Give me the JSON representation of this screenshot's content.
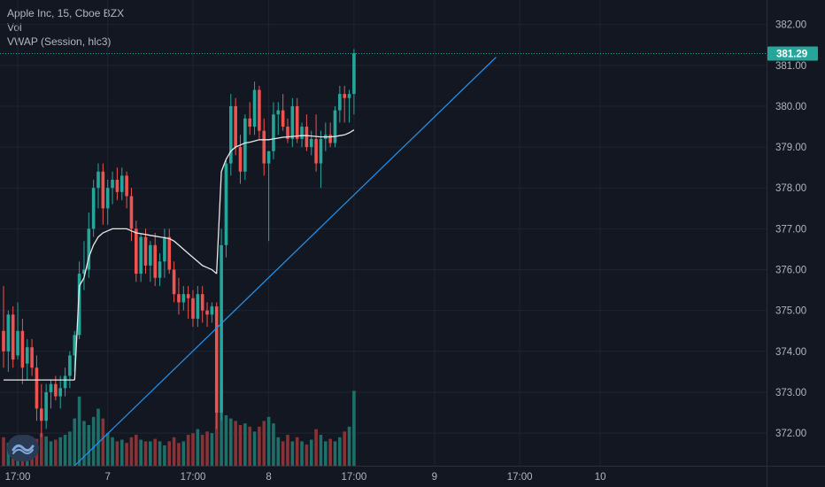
{
  "legend": {
    "symbol_line": "Apple Inc, 15, Cboe BZX",
    "vol_label": "Vol",
    "vwap_label": "VWAP (Session, hlc3)"
  },
  "colors": {
    "background": "#131722",
    "grid": "#1f2433",
    "up": "#26a69a",
    "down": "#ef5350",
    "up_volume": "#1f6f69",
    "down_volume": "#8a3235",
    "vwap": "#e8e8e8",
    "trendline": "#2196f3",
    "last_price": "#26a69a"
  },
  "chart_data": {
    "type": "candlestick",
    "y_axis_ticks": [
      382.0,
      381.0,
      380.0,
      379.0,
      378.0,
      377.0,
      376.0,
      375.0,
      374.0,
      373.0,
      372.0
    ],
    "y_axis_tick_labels": [
      "382.00",
      "381.00",
      "380.00",
      "379.00",
      "378.00",
      "377.00",
      "376.00",
      "375.00",
      "374.00",
      "373.00",
      "372.00"
    ],
    "ylim": [
      371.2,
      382.6
    ],
    "last_price": 381.29,
    "last_price_label": "381.29",
    "x_axis_labels": [
      "17:00",
      "7",
      "17:00",
      "8",
      "17:00",
      "9",
      "17:00",
      "10"
    ],
    "x_axis_label_bar_index": [
      3,
      22,
      40,
      56,
      74,
      91,
      109,
      126
    ],
    "candles": [
      [
        374.5,
        375.6,
        373.6,
        374.0
      ],
      [
        374.0,
        375.0,
        373.5,
        374.9
      ],
      [
        374.9,
        375.1,
        373.6,
        373.8
      ],
      [
        373.9,
        375.2,
        373.8,
        374.5
      ],
      [
        374.5,
        374.8,
        373.2,
        373.6
      ],
      [
        373.7,
        374.3,
        373.3,
        374.1
      ],
      [
        374.1,
        374.3,
        373.4,
        373.6
      ],
      [
        373.6,
        373.9,
        372.3,
        372.6
      ],
      [
        372.6,
        373.2,
        371.9,
        372.3
      ],
      [
        372.3,
        373.2,
        372.1,
        373.0
      ],
      [
        373.0,
        373.3,
        372.6,
        373.2
      ],
      [
        373.2,
        373.4,
        372.8,
        372.9
      ],
      [
        372.9,
        373.4,
        372.6,
        373.1
      ],
      [
        373.1,
        373.6,
        372.9,
        373.4
      ],
      [
        373.4,
        374.0,
        373.1,
        373.9
      ],
      [
        373.9,
        374.5,
        373.5,
        374.4
      ],
      [
        374.4,
        376.2,
        374.3,
        375.9
      ],
      [
        375.9,
        376.7,
        375.5,
        376.0
      ],
      [
        376.0,
        377.4,
        375.8,
        377.0
      ],
      [
        377.0,
        378.2,
        376.8,
        378.0
      ],
      [
        378.0,
        378.6,
        377.5,
        378.4
      ],
      [
        378.4,
        378.6,
        377.1,
        377.5
      ],
      [
        377.5,
        378.2,
        377.1,
        378.0
      ],
      [
        378.0,
        378.4,
        377.6,
        378.2
      ],
      [
        378.2,
        378.5,
        377.7,
        377.9
      ],
      [
        377.9,
        378.5,
        377.7,
        378.3
      ],
      [
        378.3,
        378.4,
        377.5,
        377.8
      ],
      [
        377.8,
        378.0,
        376.7,
        377.0
      ],
      [
        377.0,
        377.2,
        375.7,
        375.9
      ],
      [
        375.9,
        376.9,
        375.7,
        376.8
      ],
      [
        376.8,
        377.0,
        375.9,
        376.1
      ],
      [
        376.1,
        376.7,
        375.7,
        376.6
      ],
      [
        376.6,
        376.9,
        375.6,
        375.8
      ],
      [
        375.8,
        376.4,
        375.6,
        376.2
      ],
      [
        376.2,
        377.0,
        375.8,
        376.8
      ],
      [
        376.8,
        377.0,
        375.9,
        376.0
      ],
      [
        376.0,
        376.2,
        375.2,
        375.4
      ],
      [
        375.4,
        375.8,
        374.9,
        375.2
      ],
      [
        375.2,
        375.6,
        375.0,
        375.4
      ],
      [
        375.4,
        375.6,
        374.8,
        375.3
      ],
      [
        375.3,
        375.5,
        374.6,
        374.8
      ],
      [
        374.8,
        375.6,
        374.6,
        375.4
      ],
      [
        375.4,
        375.6,
        374.7,
        375.0
      ],
      [
        375.0,
        375.2,
        374.6,
        374.9
      ],
      [
        374.9,
        375.2,
        374.7,
        375.1
      ],
      [
        375.1,
        375.2,
        372.1,
        372.5
      ],
      [
        372.5,
        377.0,
        372.3,
        376.6
      ],
      [
        376.6,
        378.7,
        376.3,
        378.6
      ],
      [
        378.6,
        380.3,
        378.3,
        380.0
      ],
      [
        380.0,
        380.2,
        378.8,
        379.0
      ],
      [
        379.0,
        379.3,
        378.1,
        378.4
      ],
      [
        378.4,
        379.8,
        378.2,
        379.7
      ],
      [
        379.7,
        380.1,
        379.3,
        379.5
      ],
      [
        379.5,
        380.6,
        379.3,
        380.4
      ],
      [
        380.4,
        380.5,
        379.2,
        379.4
      ],
      [
        379.4,
        379.7,
        378.3,
        378.6
      ],
      [
        378.6,
        378.9,
        376.7,
        378.9
      ],
      [
        378.9,
        380.1,
        378.7,
        379.8
      ],
      [
        379.8,
        380.1,
        379.3,
        379.9
      ],
      [
        379.9,
        380.3,
        379.4,
        379.5
      ],
      [
        379.5,
        379.7,
        379.1,
        379.2
      ],
      [
        379.2,
        380.2,
        379.0,
        380.0
      ],
      [
        380.0,
        380.2,
        379.1,
        379.2
      ],
      [
        379.2,
        379.6,
        379.0,
        379.5
      ],
      [
        379.5,
        379.8,
        378.9,
        379.0
      ],
      [
        379.0,
        379.4,
        378.8,
        379.2
      ],
      [
        379.2,
        379.8,
        378.4,
        378.6
      ],
      [
        378.6,
        379.4,
        378.0,
        379.2
      ],
      [
        379.2,
        379.6,
        378.9,
        379.3
      ],
      [
        379.3,
        379.6,
        379.0,
        379.1
      ],
      [
        379.1,
        380.0,
        379.0,
        379.9
      ],
      [
        379.9,
        380.5,
        379.6,
        380.3
      ],
      [
        380.3,
        380.5,
        379.6,
        380.2
      ],
      [
        380.2,
        380.4,
        379.6,
        380.3
      ],
      [
        380.3,
        381.4,
        379.8,
        381.3
      ]
    ],
    "vwap": [
      373.3,
      373.3,
      373.3,
      373.3,
      373.3,
      373.3,
      373.3,
      373.3,
      373.3,
      373.3,
      373.3,
      373.3,
      373.3,
      373.3,
      373.3,
      373.3,
      375.6,
      375.8,
      376.3,
      376.6,
      376.8,
      376.9,
      376.95,
      377.0,
      377.0,
      377.0,
      377.0,
      376.95,
      376.9,
      376.88,
      376.86,
      376.84,
      376.82,
      376.8,
      376.78,
      376.76,
      376.7,
      376.6,
      376.5,
      376.4,
      376.3,
      376.2,
      376.1,
      376.05,
      376.0,
      375.9,
      378.4,
      378.7,
      378.9,
      379.0,
      379.05,
      379.1,
      379.12,
      379.15,
      379.18,
      379.18,
      379.18,
      379.2,
      379.22,
      379.24,
      379.25,
      379.26,
      379.27,
      379.28,
      379.28,
      379.27,
      379.26,
      379.25,
      379.25,
      379.25,
      379.26,
      379.28,
      379.3,
      379.35,
      379.42
    ],
    "volume": [
      0.35,
      0.28,
      0.22,
      0.3,
      0.26,
      0.25,
      0.3,
      0.33,
      0.4,
      0.36,
      0.3,
      0.32,
      0.35,
      0.38,
      0.42,
      0.58,
      0.85,
      0.55,
      0.5,
      0.6,
      0.7,
      0.58,
      0.4,
      0.35,
      0.3,
      0.32,
      0.28,
      0.35,
      0.38,
      0.32,
      0.3,
      0.3,
      0.33,
      0.3,
      0.25,
      0.3,
      0.35,
      0.28,
      0.3,
      0.38,
      0.4,
      0.45,
      0.38,
      0.42,
      0.4,
      1.0,
      0.95,
      0.62,
      0.58,
      0.55,
      0.5,
      0.52,
      0.48,
      0.42,
      0.48,
      0.55,
      0.6,
      0.52,
      0.35,
      0.3,
      0.38,
      0.3,
      0.35,
      0.3,
      0.26,
      0.32,
      0.45,
      0.38,
      0.3,
      0.33,
      0.3,
      0.35,
      0.42,
      0.48,
      0.92
    ],
    "trendline": {
      "start_bar": 15,
      "start_price": 371.2,
      "end_bar": 104,
      "end_price": 381.2
    }
  }
}
